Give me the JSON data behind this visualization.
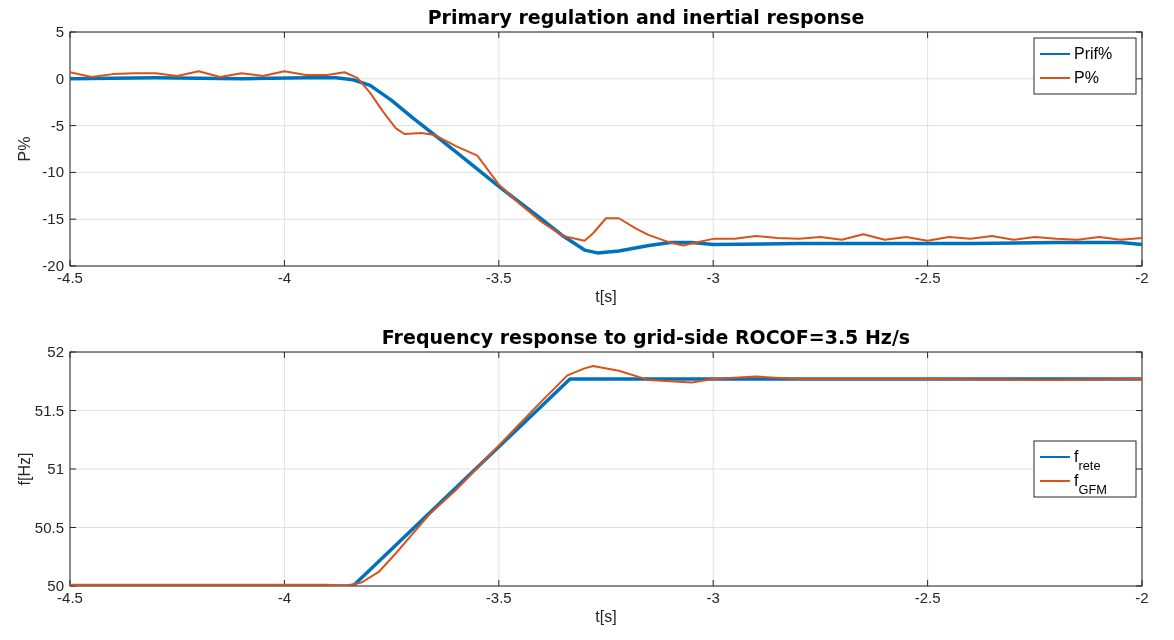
{
  "chart_data": [
    {
      "type": "line",
      "title": "Primary regulation and inertial response",
      "xlabel": "t[s]",
      "ylabel": "P%",
      "xlim": [
        -4.5,
        -2
      ],
      "xticks": [
        -4.5,
        -4,
        -3.5,
        -3,
        -2.5,
        -2
      ],
      "ylim": [
        -20,
        5
      ],
      "yticks": [
        -20,
        -15,
        -10,
        -5,
        0,
        5
      ],
      "grid": true,
      "legend": "top right",
      "series": [
        {
          "name": "Prif%",
          "color": "#0072bd",
          "x": [
            -4.5,
            -4.3,
            -4.1,
            -3.95,
            -3.88,
            -3.84,
            -3.8,
            -3.75,
            -3.7,
            -3.65,
            -3.6,
            -3.5,
            -3.4,
            -3.35,
            -3.3,
            -3.27,
            -3.22,
            -3.15,
            -3.1,
            -3.05,
            -3,
            -2.8,
            -2.6,
            -2.4,
            -2.2,
            -2.05,
            -2
          ],
          "values": [
            0,
            0.1,
            0,
            0.1,
            0.1,
            -0.1,
            -0.7,
            -2.3,
            -4.2,
            -6,
            -7.8,
            -11.5,
            -15,
            -16.8,
            -18.3,
            -18.6,
            -18.4,
            -17.8,
            -17.5,
            -17.5,
            -17.7,
            -17.6,
            -17.6,
            -17.6,
            -17.5,
            -17.5,
            -17.7
          ]
        },
        {
          "name": "P%",
          "color": "#d95319",
          "x": [
            -4.5,
            -4.45,
            -4.4,
            -4.35,
            -4.3,
            -4.25,
            -4.2,
            -4.15,
            -4.1,
            -4.05,
            -4,
            -3.95,
            -3.9,
            -3.86,
            -3.83,
            -3.8,
            -3.77,
            -3.74,
            -3.72,
            -3.68,
            -3.65,
            -3.6,
            -3.55,
            -3.5,
            -3.45,
            -3.4,
            -3.35,
            -3.3,
            -3.28,
            -3.25,
            -3.22,
            -3.18,
            -3.15,
            -3.1,
            -3.07,
            -3.04,
            -3,
            -2.95,
            -2.9,
            -2.85,
            -2.8,
            -2.75,
            -2.7,
            -2.65,
            -2.6,
            -2.55,
            -2.5,
            -2.45,
            -2.4,
            -2.35,
            -2.3,
            -2.25,
            -2.2,
            -2.15,
            -2.1,
            -2.05,
            -2
          ],
          "values": [
            0.7,
            0.2,
            0.5,
            0.6,
            0.6,
            0.3,
            0.8,
            0.2,
            0.6,
            0.3,
            0.8,
            0.4,
            0.4,
            0.7,
            0.1,
            -1.5,
            -3.5,
            -5.3,
            -5.9,
            -5.8,
            -6,
            -7.2,
            -8.2,
            -11.3,
            -13.4,
            -15.3,
            -16.8,
            -17.3,
            -16.5,
            -14.9,
            -14.9,
            -16,
            -16.7,
            -17.5,
            -17.8,
            -17.5,
            -17.1,
            -17.1,
            -16.8,
            -17,
            -17.1,
            -16.9,
            -17.2,
            -16.6,
            -17.2,
            -16.9,
            -17.3,
            -16.9,
            -17.1,
            -16.8,
            -17.2,
            -16.9,
            -17.1,
            -17.2,
            -16.9,
            -17.2,
            -17
          ]
        }
      ]
    },
    {
      "type": "line",
      "title": "Frequency response to grid-side ROCOF=3.5 Hz/s",
      "xlabel": "t[s]",
      "ylabel": "f[Hz]",
      "xlim": [
        -4.5,
        -2
      ],
      "xticks": [
        -4.5,
        -4,
        -3.5,
        -3,
        -2.5,
        -2
      ],
      "ylim": [
        50,
        52
      ],
      "yticks": [
        50,
        50.5,
        51,
        51.5,
        52
      ],
      "grid": true,
      "legend": "right",
      "series": [
        {
          "name": "f$_{rete}$",
          "color": "#0072bd",
          "x": [
            -4.5,
            -3.84,
            -3.334,
            -2
          ],
          "values": [
            50,
            50,
            51.77,
            51.77
          ]
        },
        {
          "name": "f$_{GFM}$",
          "color": "#d95319",
          "x": [
            -4.5,
            -4,
            -3.9,
            -3.86,
            -3.82,
            -3.78,
            -3.74,
            -3.7,
            -3.66,
            -3.6,
            -3.5,
            -3.4,
            -3.34,
            -3.3,
            -3.28,
            -3.22,
            -3.15,
            -3.1,
            -3.05,
            -3,
            -2.9,
            -2.8,
            -2.5,
            -2.2,
            -2
          ],
          "values": [
            50.01,
            50.01,
            50.01,
            50,
            50.03,
            50.12,
            50.28,
            50.45,
            50.62,
            50.82,
            51.2,
            51.58,
            51.8,
            51.86,
            51.88,
            51.84,
            51.76,
            51.75,
            51.74,
            51.77,
            51.79,
            51.77,
            51.77,
            51.76,
            51.77
          ]
        }
      ]
    }
  ]
}
